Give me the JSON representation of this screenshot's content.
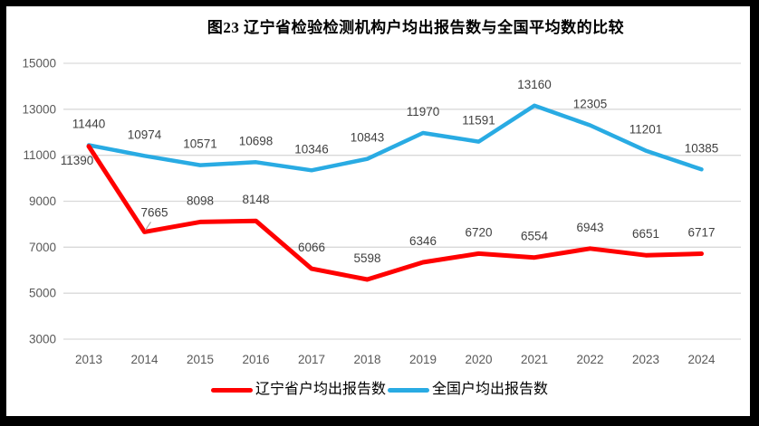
{
  "title": "图23 辽宁省检验检测机构户均出报告数与全国平均数的比较",
  "chart_data": {
    "type": "line",
    "title": "图23 辽宁省检验检测机构户均出报告数与全国平均数的比较",
    "categories": [
      "2013",
      "2014",
      "2015",
      "2016",
      "2017",
      "2018",
      "2019",
      "2020",
      "2021",
      "2022",
      "2023",
      "2024"
    ],
    "series": [
      {
        "name": "辽宁省户均出报告数",
        "color": "#FF0000",
        "values": [
          11390,
          7665,
          8098,
          8148,
          6066,
          5598,
          6346,
          6720,
          6554,
          6943,
          6651,
          6717
        ]
      },
      {
        "name": "全国户均出报告数",
        "color": "#29ABE3",
        "values": [
          11440,
          10974,
          10571,
          10698,
          10346,
          10843,
          11970,
          11591,
          13160,
          12305,
          11201,
          10385
        ]
      }
    ],
    "y_ticks": [
      15000,
      13000,
      11000,
      9000,
      7000,
      5000,
      3000
    ],
    "ylim": [
      3000,
      15000
    ],
    "grid": true,
    "legend_position": "bottom",
    "colors": {
      "gridline": "#D9D9D9",
      "axis_label": "#595959",
      "data_label": "#404040",
      "leader_line": "#A6A6A6",
      "frame_border": "#000000"
    }
  }
}
